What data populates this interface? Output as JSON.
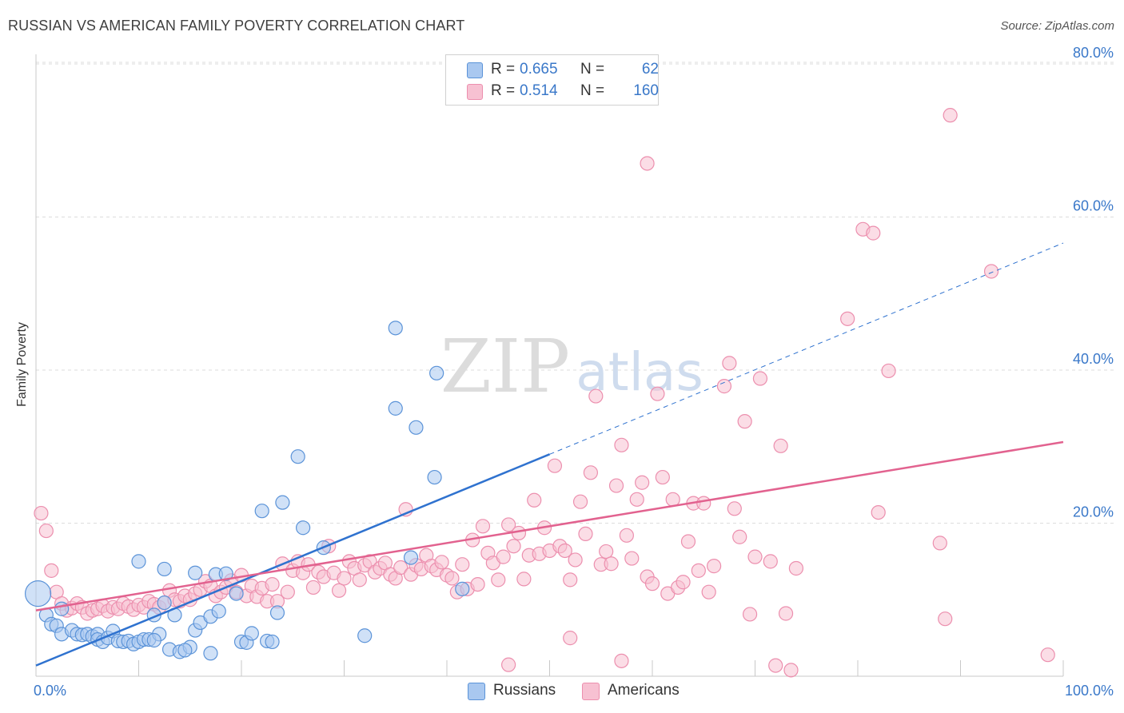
{
  "title": "RUSSIAN VS AMERICAN FAMILY POVERTY CORRELATION CHART",
  "source": "Source: ZipAtlas.com",
  "watermark": {
    "zip": "ZIP",
    "atlas": "atlas"
  },
  "legend_top": [
    {
      "r_label": "R =",
      "r_value": "0.665",
      "n_label": "N =",
      "n_value": "62"
    },
    {
      "r_label": "R =",
      "r_value": "0.514",
      "n_label": "N =",
      "n_value": "160"
    }
  ],
  "legend_bottom": [
    {
      "label": "Russians"
    },
    {
      "label": "Americans"
    }
  ],
  "colors": {
    "russians_fill": "#a9c8f0",
    "russians_stroke": "#5b93d8",
    "russians_line": "#2f72cf",
    "americans_fill": "#f7c1d2",
    "americans_stroke": "#ec8fae",
    "americans_line": "#e2628f",
    "tick_label": "#3a78c9",
    "grid": "#dddddd"
  },
  "chart_data": {
    "type": "scatter",
    "title": "RUSSIAN VS AMERICAN FAMILY POVERTY CORRELATION CHART",
    "xlabel": "",
    "ylabel": "Family Poverty",
    "xlim": [
      0,
      100
    ],
    "ylim": [
      0,
      82
    ],
    "x_tick_labels": [
      "0.0%",
      "100.0%"
    ],
    "y_tick_values": [
      20,
      40,
      60,
      80
    ],
    "y_tick_labels": [
      "20.0%",
      "40.0%",
      "60.0%",
      "80.0%"
    ],
    "grid": true,
    "series": [
      {
        "name": "Russians",
        "r": 0.665,
        "n": 62,
        "trend": {
          "x0": 0,
          "y0": 1.4,
          "x1": 50,
          "y1": 29.0,
          "dashed_to": 100,
          "dashed_y": 56.6
        },
        "points": [
          [
            0.2,
            10.8
          ],
          [
            1.0,
            8.0
          ],
          [
            1.5,
            6.8
          ],
          [
            2.0,
            6.6
          ],
          [
            2.5,
            8.8
          ],
          [
            2.5,
            5.5
          ],
          [
            3.5,
            6.0
          ],
          [
            4.0,
            5.5
          ],
          [
            4.5,
            5.4
          ],
          [
            5.0,
            5.5
          ],
          [
            5.5,
            5.2
          ],
          [
            6.0,
            5.5
          ],
          [
            6.0,
            4.8
          ],
          [
            6.5,
            4.5
          ],
          [
            7.0,
            5.0
          ],
          [
            7.5,
            5.9
          ],
          [
            8.0,
            4.6
          ],
          [
            8.5,
            4.5
          ],
          [
            9.0,
            4.6
          ],
          [
            9.5,
            4.2
          ],
          [
            10.0,
            4.5
          ],
          [
            10.5,
            4.8
          ],
          [
            11.0,
            4.8
          ],
          [
            12.0,
            5.5
          ],
          [
            11.5,
            4.7
          ],
          [
            10.0,
            15.0
          ],
          [
            12.5,
            14.0
          ],
          [
            13.5,
            8.0
          ],
          [
            12.5,
            9.6
          ],
          [
            11.5,
            8.0
          ],
          [
            13.0,
            3.5
          ],
          [
            14.0,
            3.2
          ],
          [
            15.0,
            3.8
          ],
          [
            15.5,
            6.0
          ],
          [
            14.5,
            3.4
          ],
          [
            15.5,
            13.5
          ],
          [
            16.0,
            7.0
          ],
          [
            17.0,
            7.8
          ],
          [
            17.5,
            13.3
          ],
          [
            18.5,
            13.4
          ],
          [
            17.8,
            8.5
          ],
          [
            17.0,
            3.0
          ],
          [
            19.5,
            10.8
          ],
          [
            20.0,
            4.5
          ],
          [
            20.5,
            4.4
          ],
          [
            21.0,
            5.6
          ],
          [
            22.0,
            21.6
          ],
          [
            22.5,
            4.6
          ],
          [
            23.0,
            4.5
          ],
          [
            23.5,
            8.3
          ],
          [
            24.0,
            22.7
          ],
          [
            25.5,
            28.7
          ],
          [
            26.0,
            19.4
          ],
          [
            28.0,
            16.8
          ],
          [
            32.0,
            5.3
          ],
          [
            35.0,
            45.5
          ],
          [
            35.0,
            35.0
          ],
          [
            37.0,
            32.5
          ],
          [
            39.0,
            39.6
          ],
          [
            38.8,
            26.0
          ],
          [
            36.5,
            15.5
          ],
          [
            41.5,
            11.4
          ]
        ]
      },
      {
        "name": "Americans",
        "r": 0.514,
        "n": 160,
        "trend": {
          "x0": 0,
          "y0": 8.6,
          "x1": 100,
          "y1": 30.6
        },
        "points": [
          [
            0.5,
            21.3
          ],
          [
            1.0,
            19.0
          ],
          [
            1.5,
            13.8
          ],
          [
            2.0,
            11.0
          ],
          [
            2.5,
            9.5
          ],
          [
            3.0,
            8.6
          ],
          [
            3.5,
            8.9
          ],
          [
            4.0,
            9.5
          ],
          [
            4.5,
            9.0
          ],
          [
            5.0,
            8.2
          ],
          [
            5.5,
            8.6
          ],
          [
            6.0,
            8.8
          ],
          [
            6.5,
            9.2
          ],
          [
            7.0,
            8.5
          ],
          [
            7.5,
            9.0
          ],
          [
            8.0,
            8.8
          ],
          [
            8.5,
            9.5
          ],
          [
            9.0,
            9.1
          ],
          [
            9.5,
            8.7
          ],
          [
            10.0,
            9.3
          ],
          [
            10.5,
            9.0
          ],
          [
            11.0,
            9.8
          ],
          [
            11.5,
            9.4
          ],
          [
            12.0,
            9.0
          ],
          [
            12.5,
            9.6
          ],
          [
            13.0,
            11.2
          ],
          [
            13.5,
            10.0
          ],
          [
            14.0,
            9.8
          ],
          [
            14.5,
            10.5
          ],
          [
            15.0,
            10.0
          ],
          [
            15.5,
            10.8
          ],
          [
            16.0,
            11.3
          ],
          [
            16.5,
            12.4
          ],
          [
            17.0,
            11.8
          ],
          [
            17.5,
            10.5
          ],
          [
            18.0,
            11.0
          ],
          [
            18.5,
            11.6
          ],
          [
            19.0,
            12.5
          ],
          [
            19.5,
            11.0
          ],
          [
            20.0,
            13.2
          ],
          [
            20.5,
            10.5
          ],
          [
            21.0,
            11.8
          ],
          [
            21.5,
            10.4
          ],
          [
            22.0,
            11.5
          ],
          [
            22.5,
            9.8
          ],
          [
            23.0,
            12.0
          ],
          [
            23.5,
            9.8
          ],
          [
            24.0,
            14.7
          ],
          [
            24.5,
            11.0
          ],
          [
            25.0,
            13.8
          ],
          [
            25.5,
            15.0
          ],
          [
            26.0,
            13.5
          ],
          [
            26.5,
            14.6
          ],
          [
            27.0,
            11.6
          ],
          [
            27.5,
            13.6
          ],
          [
            28.0,
            13.0
          ],
          [
            28.5,
            17.0
          ],
          [
            29.0,
            13.5
          ],
          [
            29.5,
            11.2
          ],
          [
            30.0,
            12.8
          ],
          [
            30.5,
            15.0
          ],
          [
            31.0,
            14.1
          ],
          [
            31.5,
            12.6
          ],
          [
            32.0,
            14.5
          ],
          [
            32.5,
            15.0
          ],
          [
            33.0,
            13.6
          ],
          [
            33.5,
            14.1
          ],
          [
            34.0,
            14.8
          ],
          [
            34.5,
            13.3
          ],
          [
            35.0,
            12.8
          ],
          [
            35.5,
            14.2
          ],
          [
            36.0,
            21.8
          ],
          [
            36.5,
            13.3
          ],
          [
            37.0,
            14.5
          ],
          [
            37.5,
            14.0
          ],
          [
            38.0,
            15.8
          ],
          [
            38.5,
            14.4
          ],
          [
            39.0,
            13.9
          ],
          [
            39.5,
            14.9
          ],
          [
            40.0,
            13.2
          ],
          [
            40.5,
            12.8
          ],
          [
            41.0,
            11.0
          ],
          [
            41.5,
            14.6
          ],
          [
            42.0,
            11.4
          ],
          [
            42.5,
            17.8
          ],
          [
            43.0,
            12.0
          ],
          [
            43.5,
            19.6
          ],
          [
            44.0,
            16.1
          ],
          [
            44.5,
            14.8
          ],
          [
            45.0,
            12.6
          ],
          [
            45.5,
            15.6
          ],
          [
            46.0,
            19.8
          ],
          [
            46.5,
            17.0
          ],
          [
            47.0,
            18.7
          ],
          [
            47.5,
            12.7
          ],
          [
            48.0,
            15.8
          ],
          [
            48.5,
            23.0
          ],
          [
            49.0,
            16.0
          ],
          [
            49.5,
            19.4
          ],
          [
            50.0,
            16.4
          ],
          [
            50.5,
            27.5
          ],
          [
            51.0,
            17.0
          ],
          [
            51.5,
            16.4
          ],
          [
            52.0,
            12.6
          ],
          [
            52.5,
            15.2
          ],
          [
            53.0,
            22.8
          ],
          [
            53.5,
            18.6
          ],
          [
            54.0,
            26.6
          ],
          [
            54.5,
            36.6
          ],
          [
            55.0,
            14.6
          ],
          [
            55.5,
            16.3
          ],
          [
            56.0,
            14.7
          ],
          [
            56.5,
            24.9
          ],
          [
            57.0,
            30.2
          ],
          [
            57.5,
            18.4
          ],
          [
            58.0,
            15.4
          ],
          [
            58.5,
            23.1
          ],
          [
            59.0,
            25.3
          ],
          [
            59.5,
            13.0
          ],
          [
            60.0,
            12.1
          ],
          [
            60.5,
            36.9
          ],
          [
            61.0,
            26.0
          ],
          [
            61.5,
            10.8
          ],
          [
            62.0,
            23.1
          ],
          [
            62.5,
            11.6
          ],
          [
            63.0,
            12.3
          ],
          [
            63.5,
            17.6
          ],
          [
            64.0,
            22.6
          ],
          [
            64.5,
            13.8
          ],
          [
            65.0,
            22.6
          ],
          [
            65.5,
            11.0
          ],
          [
            66.0,
            14.4
          ],
          [
            67.0,
            37.9
          ],
          [
            67.5,
            40.9
          ],
          [
            68.0,
            21.9
          ],
          [
            68.5,
            18.2
          ],
          [
            69.0,
            33.3
          ],
          [
            69.5,
            8.1
          ],
          [
            70.0,
            15.6
          ],
          [
            70.5,
            38.9
          ],
          [
            71.5,
            15.0
          ],
          [
            72.0,
            1.4
          ],
          [
            72.5,
            30.1
          ],
          [
            73.0,
            8.2
          ],
          [
            73.5,
            0.8
          ],
          [
            74.0,
            14.1
          ],
          [
            79.0,
            46.7
          ],
          [
            82.0,
            21.4
          ],
          [
            83.0,
            39.9
          ],
          [
            88.0,
            17.4
          ],
          [
            88.5,
            7.5
          ],
          [
            89.0,
            73.3
          ],
          [
            93.0,
            52.9
          ],
          [
            98.5,
            2.8
          ],
          [
            80.5,
            58.4
          ],
          [
            81.5,
            57.9
          ],
          [
            59.5,
            67.0
          ],
          [
            52.0,
            5.0
          ],
          [
            57.0,
            2.0
          ],
          [
            46.0,
            1.5
          ]
        ]
      }
    ]
  }
}
